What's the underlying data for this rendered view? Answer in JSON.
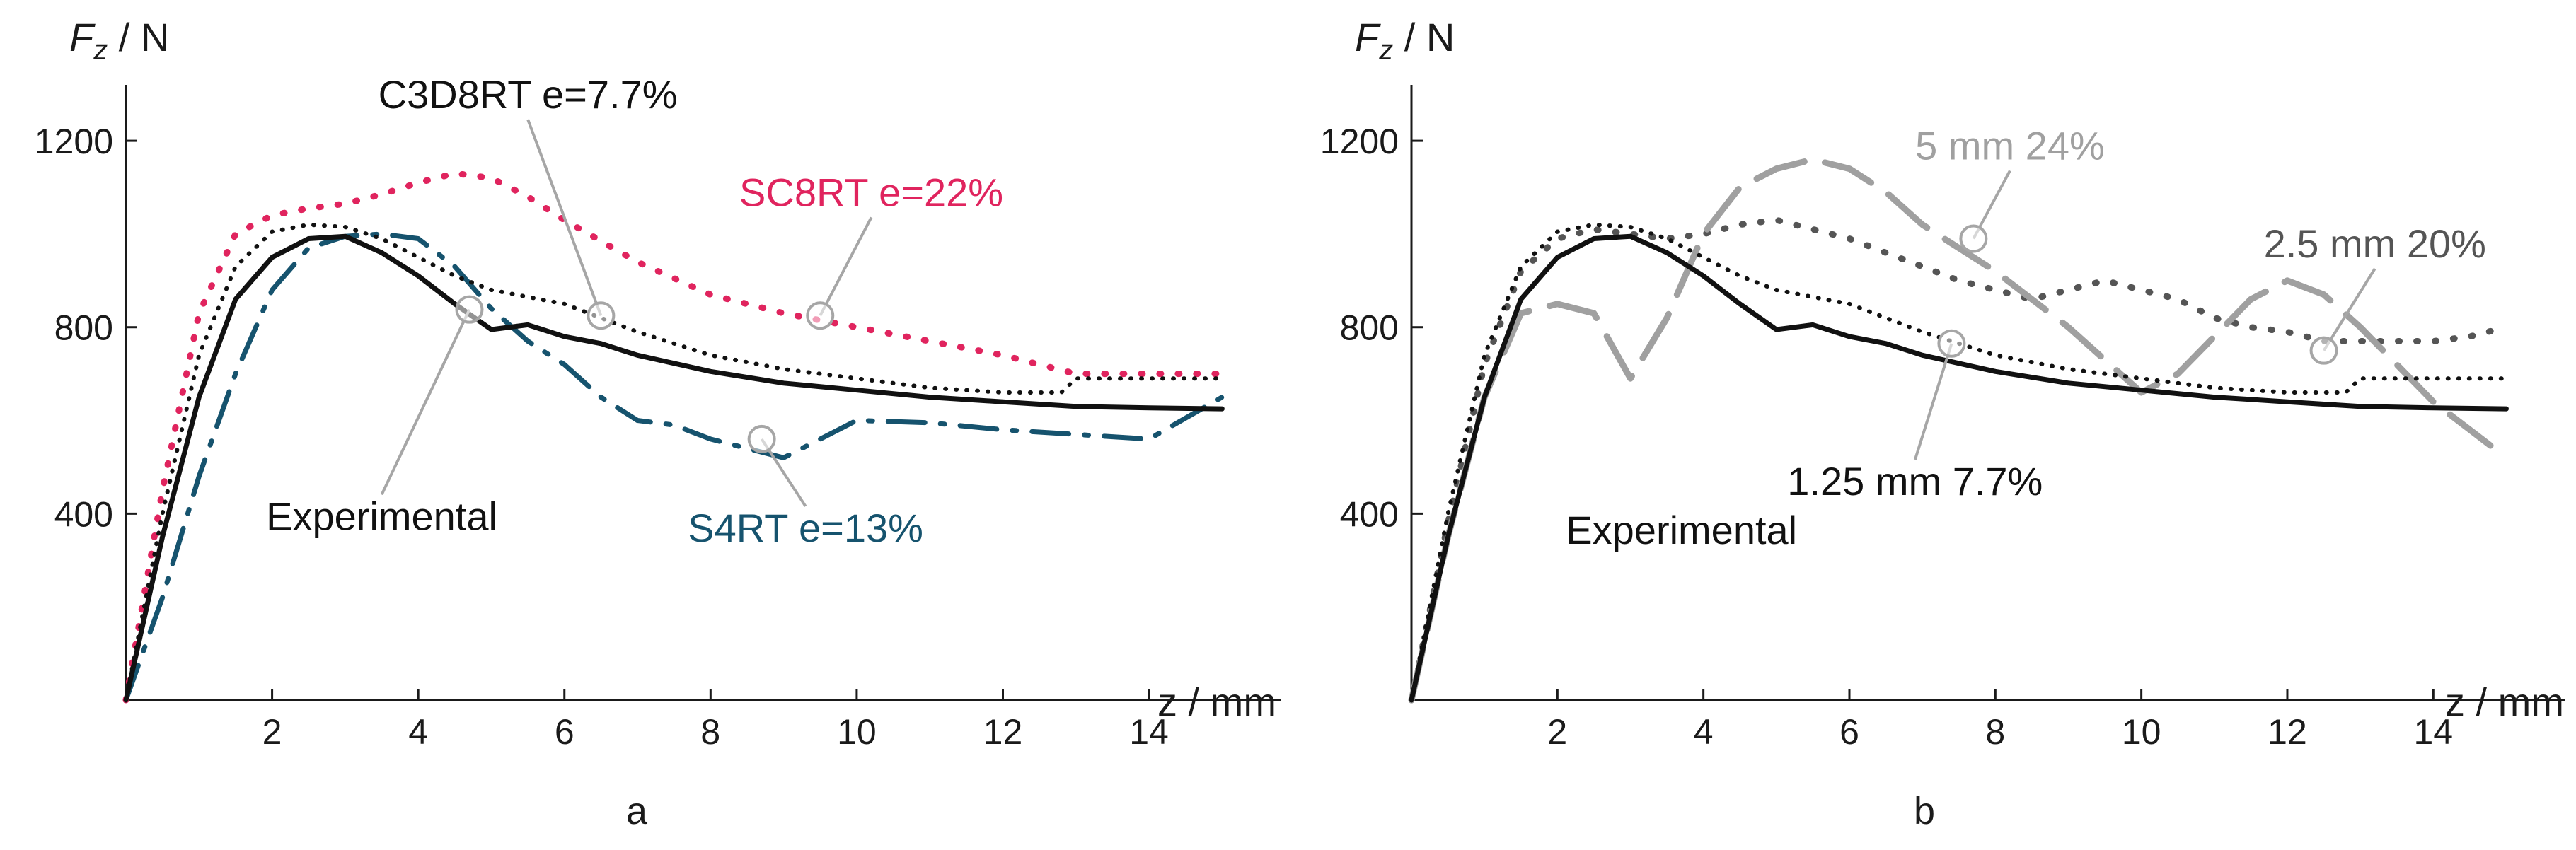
{
  "colors": {
    "axis": "#1a1a1a",
    "experimental": "#111111",
    "c3d8rt": "#111111",
    "sc8rt": "#e0245e",
    "s4rt": "#16536e",
    "leader": "#a6a6a6",
    "mesh5": "#a0a0a0",
    "mesh25": "#555555",
    "mesh125": "#111111"
  },
  "chart_data": [
    {
      "type": "line",
      "panel_label": "a",
      "ylabel": "F_z / N",
      "ylabel_main": "F",
      "ylabel_sub": "z",
      "ylabel_unit": " / N",
      "xlabel": "z / mm",
      "xlim": [
        0,
        15.8
      ],
      "ylim": [
        0,
        1320
      ],
      "xticks": [
        2,
        4,
        6,
        8,
        10,
        12,
        14
      ],
      "yticks": [
        400,
        800,
        1200
      ],
      "series": [
        {
          "name": "Experimental",
          "label": "Experimental",
          "style": "solid",
          "colorKey": "experimental",
          "width": 7,
          "anchor": [
            4.7,
            838
          ],
          "labelPos": [
            3.5,
            365
          ],
          "textColor": "experimental",
          "labelAlign": "middle",
          "x": [
            0,
            0.5,
            1,
            1.5,
            2,
            2.5,
            3,
            3.5,
            4,
            4.5,
            5,
            5.5,
            6,
            6.5,
            7,
            8,
            9,
            10,
            11,
            12,
            13,
            14,
            15
          ],
          "y": [
            0,
            350,
            650,
            860,
            950,
            990,
            995,
            960,
            910,
            850,
            795,
            805,
            780,
            765,
            740,
            705,
            680,
            665,
            650,
            640,
            630,
            627,
            625
          ]
        },
        {
          "name": "C3D8RT e=7.7%",
          "label": "C3D8RT e=7.7%",
          "style": "dotted",
          "colorKey": "c3d8rt",
          "width": 6,
          "anchor": [
            6.5,
            825
          ],
          "labelPos": [
            5.5,
            1270
          ],
          "textColor": "c3d8rt",
          "labelAlign": "middle",
          "x": [
            0,
            0.5,
            1,
            1.5,
            2,
            2.5,
            3,
            3.5,
            4,
            4.5,
            5,
            5.5,
            6,
            7,
            8,
            9,
            10,
            11,
            12,
            12.8,
            13,
            14,
            15
          ],
          "y": [
            0,
            400,
            740,
            930,
            1005,
            1020,
            1015,
            990,
            950,
            910,
            880,
            865,
            850,
            790,
            740,
            710,
            690,
            670,
            660,
            660,
            690,
            690,
            690
          ]
        },
        {
          "name": "SC8RT e=22%",
          "label": "SC8RT e=22%",
          "style": "dotted-sparse",
          "colorKey": "sc8rt",
          "width": 9,
          "anchor": [
            9.5,
            825
          ],
          "labelPos": [
            10.2,
            1060
          ],
          "textColor": "sc8rt",
          "labelAlign": "middle",
          "x": [
            0,
            0.5,
            1,
            1.5,
            2,
            2.5,
            3,
            3.5,
            4,
            4.5,
            5,
            5.5,
            6,
            7,
            8,
            9,
            10,
            11,
            12,
            13,
            14,
            15
          ],
          "y": [
            0,
            450,
            830,
            1000,
            1040,
            1055,
            1065,
            1085,
            1110,
            1130,
            1120,
            1080,
            1030,
            940,
            870,
            830,
            800,
            770,
            740,
            700,
            700,
            700
          ]
        },
        {
          "name": "S4RT e=13%",
          "label": "S4RT e=13%",
          "style": "dashdot",
          "colorKey": "s4rt",
          "width": 7,
          "anchor": [
            8.7,
            560
          ],
          "labelPos": [
            9.3,
            340
          ],
          "textColor": "s4rt",
          "labelAlign": "middle",
          "x": [
            0,
            0.5,
            1,
            1.5,
            2,
            2.5,
            3,
            3.5,
            4,
            4.5,
            5,
            5.5,
            6,
            6.5,
            7,
            7.5,
            8,
            9,
            10,
            11,
            12,
            13,
            14,
            15
          ],
          "y": [
            0,
            220,
            480,
            700,
            880,
            970,
            995,
            1000,
            990,
            930,
            840,
            770,
            720,
            650,
            600,
            590,
            560,
            520,
            600,
            595,
            580,
            570,
            560,
            650
          ]
        }
      ]
    },
    {
      "type": "line",
      "panel_label": "b",
      "ylabel": "F_z / N",
      "ylabel_main": "F",
      "ylabel_sub": "z",
      "ylabel_unit": " / N",
      "xlabel": "z / mm",
      "xlim": [
        0,
        15.8
      ],
      "ylim": [
        0,
        1320
      ],
      "xticks": [
        2,
        4,
        6,
        8,
        10,
        12,
        14
      ],
      "yticks": [
        400,
        800,
        1200
      ],
      "series": [
        {
          "name": "Experimental",
          "label": "Experimental",
          "style": "solid",
          "colorKey": "experimental",
          "width": 7,
          "anchor": null,
          "labelPos": [
            3.7,
            335
          ],
          "textColor": "experimental",
          "labelAlign": "middle",
          "x": [
            0,
            0.5,
            1,
            1.5,
            2,
            2.5,
            3,
            3.5,
            4,
            4.5,
            5,
            5.5,
            6,
            6.5,
            7,
            8,
            9,
            10,
            11,
            12,
            13,
            14,
            15
          ],
          "y": [
            0,
            350,
            650,
            860,
            950,
            990,
            995,
            960,
            910,
            850,
            795,
            805,
            780,
            765,
            740,
            705,
            680,
            665,
            650,
            640,
            630,
            627,
            625
          ]
        },
        {
          "name": "1.25 mm 7.7%",
          "label": "1.25 mm 7.7%",
          "style": "dotted",
          "colorKey": "mesh125",
          "width": 6,
          "anchor": [
            7.4,
            765
          ],
          "labelPos": [
            6.9,
            440
          ],
          "textColor": "mesh125",
          "labelAlign": "middle",
          "x": [
            0,
            0.5,
            1,
            1.5,
            2,
            2.5,
            3,
            3.5,
            4,
            4.5,
            5,
            5.5,
            6,
            7,
            8,
            9,
            10,
            11,
            12,
            12.8,
            13,
            14,
            15
          ],
          "y": [
            0,
            400,
            740,
            930,
            1005,
            1020,
            1015,
            990,
            950,
            910,
            880,
            865,
            850,
            790,
            740,
            710,
            690,
            670,
            660,
            660,
            690,
            690,
            690
          ]
        },
        {
          "name": "5 mm 24%",
          "label": "5 mm 24%",
          "style": "longdash",
          "colorKey": "mesh5",
          "width": 9,
          "anchor": [
            7.7,
            990
          ],
          "labelPos": [
            8.2,
            1160
          ],
          "textColor": "mesh5",
          "labelAlign": "middle",
          "x": [
            0,
            0.5,
            1,
            1.5,
            2,
            2.5,
            3,
            3.5,
            4,
            4.5,
            5,
            5.5,
            6,
            6.5,
            7,
            7.5,
            8,
            8.5,
            9,
            9.5,
            10,
            10.5,
            11,
            11.5,
            12,
            12.5,
            13,
            13.5,
            14,
            14.5,
            15
          ],
          "y": [
            0,
            350,
            650,
            830,
            850,
            830,
            690,
            820,
            1000,
            1100,
            1140,
            1160,
            1140,
            1090,
            1020,
            970,
            920,
            860,
            800,
            730,
            660,
            700,
            780,
            860,
            900,
            870,
            800,
            720,
            640,
            580,
            520
          ]
        },
        {
          "name": "2.5 mm 20%",
          "label": "2.5 mm 20%",
          "style": "dotted-sparse",
          "colorKey": "mesh25",
          "width": 9,
          "anchor": [
            12.5,
            750
          ],
          "labelPos": [
            13.2,
            950
          ],
          "textColor": "mesh25",
          "labelAlign": "middle",
          "x": [
            0,
            0.5,
            1,
            1.5,
            2,
            2.5,
            3,
            3.5,
            4,
            4.5,
            5,
            5.5,
            6,
            6.5,
            7,
            7.5,
            8,
            8.5,
            9,
            9.5,
            10,
            10.5,
            11,
            11.5,
            12,
            12.5,
            13,
            13.5,
            14,
            14.5,
            15
          ],
          "y": [
            0,
            380,
            720,
            920,
            990,
            1010,
            1000,
            990,
            1000,
            1020,
            1030,
            1010,
            990,
            960,
            930,
            900,
            880,
            860,
            880,
            900,
            880,
            860,
            820,
            800,
            790,
            770,
            770,
            770,
            770,
            780,
            800
          ]
        }
      ]
    }
  ]
}
